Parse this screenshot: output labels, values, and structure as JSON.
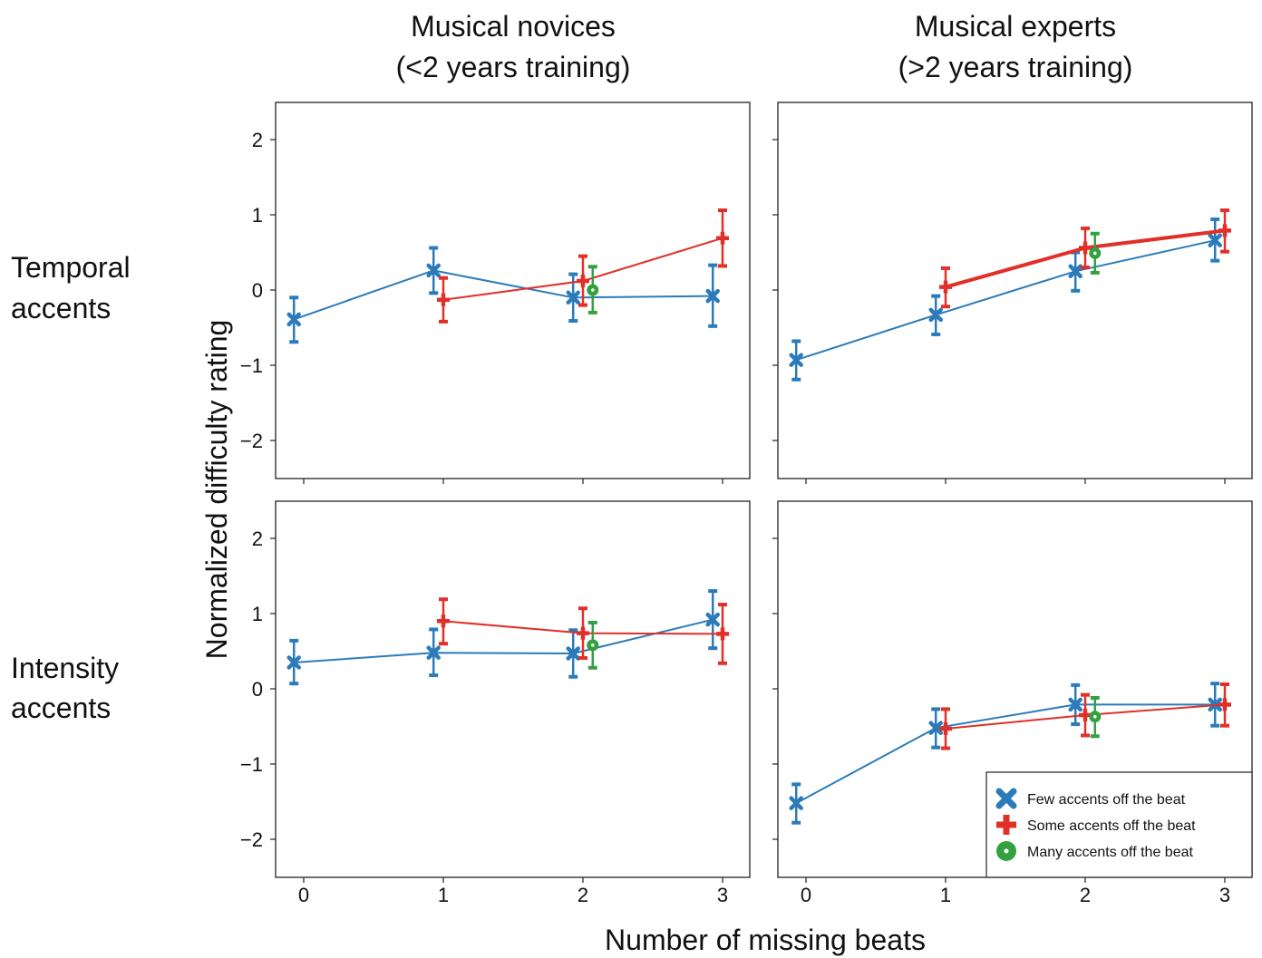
{
  "column_titles": [
    {
      "line1": "Musical novices",
      "line2": "(<2 years training)"
    },
    {
      "line1": "Musical experts",
      "line2": "(>2 years training)"
    }
  ],
  "row_labels": [
    {
      "line1": "Temporal",
      "line2": "accents"
    },
    {
      "line1": "Intensity",
      "line2": "accents"
    }
  ],
  "ylabel": "Normalized difficulty rating",
  "xlabel": "Number of missing beats",
  "xticks": [
    "0",
    "1",
    "2",
    "3"
  ],
  "yticks": [
    "2",
    "1",
    "0",
    "−1",
    "−2"
  ],
  "legend": [
    {
      "label": "Few accents off the beat",
      "marker": "x-icon"
    },
    {
      "label": "Some accents off the beat",
      "marker": "plus-icon"
    },
    {
      "label": "Many accents off the beat",
      "marker": "circle-dot-icon"
    }
  ],
  "colors": {
    "few": "#2b7bba",
    "some": "#e03028",
    "many": "#33a140"
  },
  "chart_data": [
    {
      "type": "line",
      "panel": "temporal-novices",
      "xlim": [
        -0.1,
        3.2
      ],
      "ylim": [
        -2.5,
        2.5
      ],
      "series": [
        {
          "name": "Few accents off the beat",
          "color": "#2b7bba",
          "marker": "x",
          "offset": -0.07,
          "lw": 2,
          "x": [
            0,
            1,
            2,
            3
          ],
          "y": [
            -0.39,
            0.26,
            -0.1,
            -0.08
          ],
          "err_low": [
            -0.69,
            -0.04,
            -0.41,
            -0.48
          ],
          "err_high": [
            -0.1,
            0.56,
            0.21,
            0.33
          ]
        },
        {
          "name": "Some accents off the beat",
          "color": "#e03028",
          "marker": "plus",
          "offset": 0.0,
          "lw": 2,
          "x": [
            1,
            2,
            3
          ],
          "y": [
            -0.13,
            0.12,
            0.69
          ],
          "err_low": [
            -0.42,
            -0.2,
            0.32
          ],
          "err_high": [
            0.16,
            0.45,
            1.06
          ]
        },
        {
          "name": "Many accents off the beat",
          "color": "#33a140",
          "marker": "circle",
          "offset": 0.07,
          "lw": 2,
          "x": [
            2
          ],
          "y": [
            0.0
          ],
          "err_low": [
            -0.3
          ],
          "err_high": [
            0.31
          ]
        }
      ]
    },
    {
      "type": "line",
      "panel": "temporal-experts",
      "xlim": [
        -0.1,
        3.2
      ],
      "ylim": [
        -2.5,
        2.5
      ],
      "series": [
        {
          "name": "Few accents off the beat",
          "color": "#2b7bba",
          "marker": "x",
          "offset": -0.07,
          "lw": 2,
          "x": [
            0,
            1,
            2,
            3
          ],
          "y": [
            -0.93,
            -0.33,
            0.25,
            0.66
          ],
          "err_low": [
            -1.19,
            -0.59,
            -0.01,
            0.39
          ],
          "err_high": [
            -0.68,
            -0.08,
            0.5,
            0.94
          ]
        },
        {
          "name": "Some accents off the beat",
          "color": "#e03028",
          "marker": "plus",
          "offset": 0.0,
          "lw": 4,
          "x": [
            1,
            2,
            3
          ],
          "y": [
            0.04,
            0.56,
            0.79
          ],
          "err_low": [
            -0.22,
            0.3,
            0.51
          ],
          "err_high": [
            0.29,
            0.82,
            1.06
          ]
        },
        {
          "name": "Many accents off the beat",
          "color": "#33a140",
          "marker": "circle",
          "offset": 0.07,
          "lw": 2,
          "x": [
            2
          ],
          "y": [
            0.49
          ],
          "err_low": [
            0.23
          ],
          "err_high": [
            0.75
          ]
        }
      ]
    },
    {
      "type": "line",
      "panel": "intensity-novices",
      "xlim": [
        -0.1,
        3.2
      ],
      "ylim": [
        -2.5,
        2.5
      ],
      "series": [
        {
          "name": "Few accents off the beat",
          "color": "#2b7bba",
          "marker": "x",
          "offset": -0.07,
          "lw": 2,
          "x": [
            0,
            1,
            2,
            3
          ],
          "y": [
            0.35,
            0.48,
            0.47,
            0.92
          ],
          "err_low": [
            0.07,
            0.18,
            0.16,
            0.54
          ],
          "err_high": [
            0.64,
            0.79,
            0.78,
            1.3
          ]
        },
        {
          "name": "Some accents off the beat",
          "color": "#e03028",
          "marker": "plus",
          "offset": 0.0,
          "lw": 2,
          "x": [
            1,
            2,
            3
          ],
          "y": [
            0.9,
            0.74,
            0.73
          ],
          "err_low": [
            0.6,
            0.41,
            0.34
          ],
          "err_high": [
            1.19,
            1.07,
            1.12
          ]
        },
        {
          "name": "Many accents off the beat",
          "color": "#33a140",
          "marker": "circle",
          "offset": 0.07,
          "lw": 2,
          "x": [
            2
          ],
          "y": [
            0.58
          ],
          "err_low": [
            0.28
          ],
          "err_high": [
            0.88
          ]
        }
      ]
    },
    {
      "type": "line",
      "panel": "intensity-experts",
      "xlim": [
        -0.1,
        3.2
      ],
      "ylim": [
        -2.5,
        2.5
      ],
      "series": [
        {
          "name": "Few accents off the beat",
          "color": "#2b7bba",
          "marker": "x",
          "offset": -0.07,
          "lw": 2,
          "x": [
            0,
            1,
            2,
            3
          ],
          "y": [
            -1.52,
            -0.52,
            -0.21,
            -0.21
          ],
          "err_low": [
            -1.78,
            -0.78,
            -0.47,
            -0.49
          ],
          "err_high": [
            -1.27,
            -0.27,
            0.05,
            0.07
          ]
        },
        {
          "name": "Some accents off the beat",
          "color": "#e03028",
          "marker": "plus",
          "offset": 0.0,
          "lw": 2,
          "x": [
            1,
            2,
            3
          ],
          "y": [
            -0.53,
            -0.35,
            -0.21
          ],
          "err_low": [
            -0.79,
            -0.62,
            -0.49
          ],
          "err_high": [
            -0.27,
            -0.08,
            0.06
          ]
        },
        {
          "name": "Many accents off the beat",
          "color": "#33a140",
          "marker": "circle",
          "offset": 0.07,
          "lw": 2,
          "x": [
            2
          ],
          "y": [
            -0.37
          ],
          "err_low": [
            -0.63
          ],
          "err_high": [
            -0.12
          ]
        }
      ]
    }
  ]
}
